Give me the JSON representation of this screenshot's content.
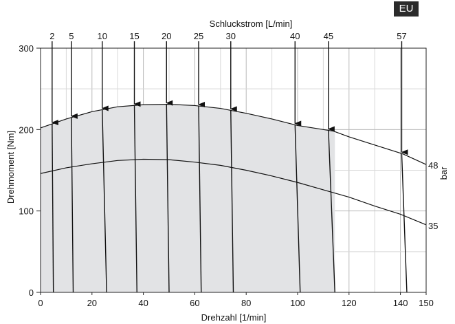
{
  "region_badge": "EU",
  "chart_data": {
    "type": "line",
    "title": "",
    "top_axis_label": "Schluckstrom [L/min]",
    "xlabel": "Drehzahl [1/min]",
    "ylabel": "Drehmoment [Nm]",
    "xlim": [
      0,
      150
    ],
    "ylim": [
      0,
      300
    ],
    "x_ticks": [
      0,
      20,
      40,
      60,
      80,
      100,
      120,
      140,
      150
    ],
    "y_ticks": [
      0,
      100,
      200,
      300
    ],
    "pressure_unit": "bar",
    "grid": true,
    "series": [
      {
        "name": "48",
        "x": [
          0,
          10,
          20,
          30,
          40,
          50,
          60,
          70,
          80,
          90,
          100,
          114,
          120,
          130,
          141,
          150
        ],
        "values": [
          202,
          213,
          222,
          228,
          230.5,
          231,
          229.5,
          226,
          220,
          213,
          205,
          198,
          191,
          181,
          170,
          157
        ]
      },
      {
        "name": "35",
        "x": [
          0,
          10,
          20,
          30,
          40,
          50,
          60,
          70,
          80,
          90,
          100,
          110,
          120,
          130,
          140,
          150
        ],
        "values": [
          146,
          153,
          158,
          162,
          163.5,
          163,
          160,
          156,
          150,
          143,
          135,
          126,
          117,
          106,
          96,
          83
        ]
      }
    ],
    "flow_lines": [
      {
        "label": "2",
        "x_top": 4.5,
        "x_bottom": 5
      },
      {
        "label": "5",
        "x_top": 12,
        "x_bottom": 12.7
      },
      {
        "label": "10",
        "x_top": 24,
        "x_bottom": 25.7
      },
      {
        "label": "15",
        "x_top": 36.5,
        "x_bottom": 37.5
      },
      {
        "label": "20",
        "x_top": 49,
        "x_bottom": 50
      },
      {
        "label": "25",
        "x_top": 61.5,
        "x_bottom": 62.5
      },
      {
        "label": "30",
        "x_top": 74,
        "x_bottom": 75
      },
      {
        "label": "40",
        "x_top": 99,
        "x_bottom": 101
      },
      {
        "label": "45",
        "x_top": 112,
        "x_bottom": 114.5
      },
      {
        "label": "57",
        "x_top": 140.5,
        "x_bottom": 142.5
      }
    ],
    "shaded_region_max_x": 114.5
  }
}
